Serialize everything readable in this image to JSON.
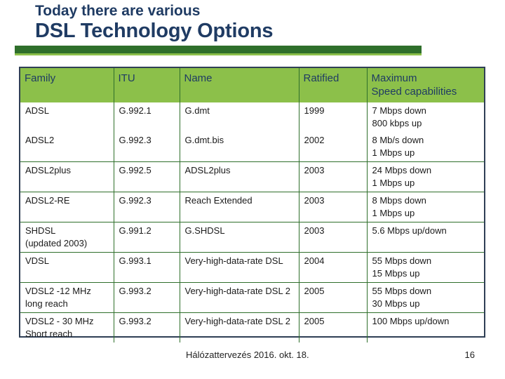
{
  "title": {
    "line1": "Today there are various",
    "line2": "DSL Technology Options"
  },
  "colors": {
    "title": "#1f3b63",
    "header_bg": "#8cc04a",
    "rule_dark": "#2f6f2b",
    "border": "#2f6f2b"
  },
  "table": {
    "headers": [
      "Family",
      "ITU",
      "Name",
      "Ratified",
      "Maximum\nSpeed capabilities"
    ],
    "rows": [
      {
        "family": "ADSL",
        "itu": "G.992.1",
        "name": "G.dmt",
        "ratified": "1999",
        "speed": "7 Mbps down\n800 kbps up"
      },
      {
        "family": "ADSL2",
        "itu": "G.992.3",
        "name": "G.dmt.bis",
        "ratified": "2002",
        "speed": "8 Mb/s down\n1 Mbps up"
      },
      {
        "family": "ADSL2plus",
        "itu": "G.992.5",
        "name": "ADSL2plus",
        "ratified": "2003",
        "speed": "24 Mbps down\n1 Mbps up"
      },
      {
        "family": "ADSL2-RE",
        "itu": "G.992.3",
        "name": "Reach Extended",
        "ratified": "2003",
        "speed": "8 Mbps down\n1 Mbps up"
      },
      {
        "family": "SHDSL\n(updated 2003)",
        "itu": "G.991.2",
        "name": "G.SHDSL",
        "ratified": "2003",
        "speed": "5.6 Mbps up/down"
      },
      {
        "family": "VDSL",
        "itu": "G.993.1",
        "name": "Very-high-data-rate DSL",
        "ratified": "2004",
        "speed": "55 Mbps down\n15 Mbps up"
      },
      {
        "family": "VDSL2 -12 MHz\nlong reach",
        "itu": "G.993.2",
        "name": "Very-high-data-rate DSL 2",
        "ratified": "2005",
        "speed": "55 Mbps down\n30 Mbps up"
      },
      {
        "family": "VDSL2 - 30 MHz\nShort reach",
        "itu": "G.993.2",
        "name": "Very-high-data-rate DSL 2",
        "ratified": "2005",
        "speed": "100 Mbps up/down"
      }
    ]
  },
  "footer": {
    "center": "Hálózattervezés 2016. okt. 18.",
    "page": "16"
  }
}
